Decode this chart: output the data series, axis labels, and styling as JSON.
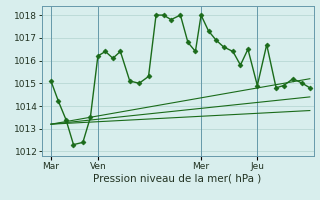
{
  "xlabel": "Pression niveau de la mer( hPa )",
  "bg_color": "#d8eeed",
  "grid_color": "#b8d8d4",
  "line_color": "#1a6b1a",
  "ylim": [
    1011.8,
    1018.4
  ],
  "yticks": [
    1012,
    1013,
    1014,
    1015,
    1016,
    1017,
    1018
  ],
  "xtick_labels": [
    "Mar",
    "Ven",
    "Mer",
    "Jeu"
  ],
  "xtick_positions": [
    0.5,
    3.0,
    8.5,
    11.5
  ],
  "vline_positions": [
    0.5,
    3.0,
    8.5,
    11.5
  ],
  "xlim": [
    0,
    14.5
  ],
  "main_x": [
    0.5,
    0.9,
    1.3,
    1.7,
    2.2,
    2.6,
    3.0,
    3.4,
    3.8,
    4.2,
    4.7,
    5.2,
    5.7,
    6.1,
    6.5,
    6.9,
    7.4,
    7.8,
    8.2,
    8.5,
    8.9,
    9.3,
    9.7,
    10.2,
    10.6,
    11.0,
    11.5,
    12.0,
    12.5,
    12.9,
    13.4,
    13.9,
    14.3
  ],
  "main_y": [
    1015.1,
    1014.2,
    1013.4,
    1012.3,
    1012.4,
    1013.5,
    1016.2,
    1016.4,
    1016.1,
    1016.4,
    1015.1,
    1015.0,
    1015.3,
    1018.0,
    1018.0,
    1017.8,
    1018.0,
    1016.8,
    1016.4,
    1018.0,
    1017.3,
    1016.9,
    1016.6,
    1016.4,
    1015.8,
    1016.5,
    1014.9,
    1016.7,
    1014.8,
    1014.9,
    1015.2,
    1015.0,
    1014.8
  ],
  "trend1_x": [
    0.5,
    14.3
  ],
  "trend1_y": [
    1013.2,
    1015.2
  ],
  "trend2_x": [
    0.5,
    14.3
  ],
  "trend2_y": [
    1013.2,
    1014.4
  ],
  "trend3_x": [
    0.5,
    14.3
  ],
  "trend3_y": [
    1013.2,
    1013.8
  ],
  "marker": "D",
  "markersize": 2.5,
  "linewidth": 1.0
}
